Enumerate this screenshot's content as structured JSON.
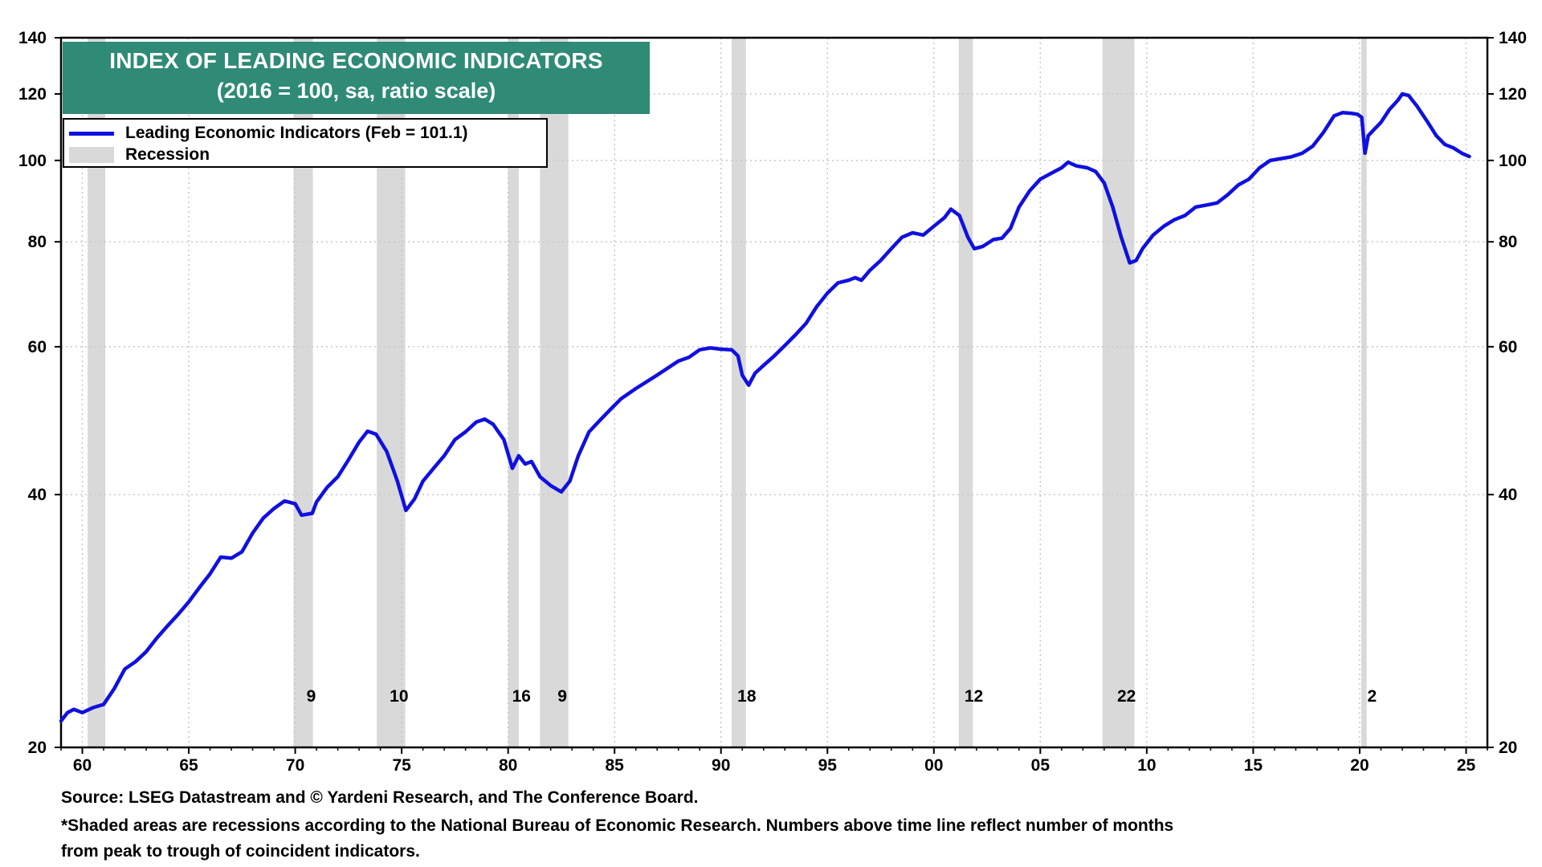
{
  "chart_data": {
    "type": "line",
    "title": "INDEX OF LEADING ECONOMIC INDICATORS",
    "subtitle": "(2016 = 100, sa, ratio scale)",
    "xlim": [
      1959,
      2026
    ],
    "ylim": [
      20,
      140
    ],
    "yscale": "log",
    "y_ticks": [
      20,
      40,
      60,
      80,
      100,
      120,
      140
    ],
    "y_tick_labels": [
      "20",
      "40",
      "60",
      "80",
      "100",
      "120",
      "140"
    ],
    "x_ticks": [
      1960,
      1965,
      1970,
      1975,
      1980,
      1985,
      1990,
      1995,
      2000,
      2005,
      2010,
      2015,
      2020,
      2025
    ],
    "x_tick_labels": [
      "60",
      "65",
      "70",
      "75",
      "80",
      "85",
      "90",
      "95",
      "00",
      "05",
      "10",
      "15",
      "20",
      "25"
    ],
    "legend": {
      "line_label": "Leading Economic Indicators (Feb = 101.1)",
      "recession_label": "Recession",
      "placement": "top-left"
    },
    "recessions": [
      {
        "start": 1960.25,
        "end": 1961.08,
        "months": ""
      },
      {
        "start": 1969.92,
        "end": 1970.83,
        "months": "9"
      },
      {
        "start": 1973.83,
        "end": 1975.17,
        "months": "10"
      },
      {
        "start": 1980.0,
        "end": 1980.5,
        "months": "16"
      },
      {
        "start": 1981.5,
        "end": 1982.83,
        "months": "9"
      },
      {
        "start": 1990.5,
        "end": 1991.17,
        "months": "18"
      },
      {
        "start": 2001.17,
        "end": 2001.83,
        "months": "12"
      },
      {
        "start": 2007.92,
        "end": 2009.42,
        "months": "22"
      },
      {
        "start": 2020.08,
        "end": 2020.33,
        "months": "2"
      }
    ],
    "series": [
      {
        "name": "Leading Economic Indicators",
        "color": "#1010e0",
        "x": [
          1959.0,
          1959.3,
          1959.6,
          1960.0,
          1960.5,
          1961.0,
          1961.5,
          1962.0,
          1962.5,
          1963.0,
          1963.5,
          1964.0,
          1964.5,
          1965.0,
          1965.5,
          1966.0,
          1966.5,
          1967.0,
          1967.5,
          1968.0,
          1968.5,
          1969.0,
          1969.5,
          1970.0,
          1970.3,
          1970.8,
          1971.0,
          1971.5,
          1972.0,
          1972.5,
          1973.0,
          1973.4,
          1973.8,
          1974.3,
          1974.8,
          1975.2,
          1975.6,
          1976.0,
          1976.5,
          1977.0,
          1977.5,
          1978.0,
          1978.5,
          1978.9,
          1979.3,
          1979.8,
          1980.2,
          1980.5,
          1980.8,
          1981.1,
          1981.5,
          1982.0,
          1982.5,
          1982.9,
          1983.3,
          1983.8,
          1984.3,
          1984.8,
          1985.3,
          1986.0,
          1987.0,
          1988.0,
          1988.5,
          1989.0,
          1989.5,
          1990.0,
          1990.5,
          1990.8,
          1991.0,
          1991.3,
          1991.6,
          1992.0,
          1992.5,
          1993.0,
          1993.5,
          1994.0,
          1994.5,
          1995.0,
          1995.5,
          1996.0,
          1996.3,
          1996.6,
          1997.0,
          1997.5,
          1998.0,
          1998.5,
          1999.0,
          1999.5,
          2000.0,
          2000.5,
          2000.8,
          2001.2,
          2001.6,
          2001.9,
          2002.3,
          2002.8,
          2003.2,
          2003.6,
          2004.0,
          2004.5,
          2005.0,
          2005.5,
          2006.0,
          2006.3,
          2006.7,
          2007.2,
          2007.6,
          2008.0,
          2008.4,
          2008.8,
          2009.2,
          2009.5,
          2009.8,
          2010.3,
          2010.8,
          2011.3,
          2011.8,
          2012.3,
          2012.8,
          2013.3,
          2013.8,
          2014.3,
          2014.8,
          2015.3,
          2015.8,
          2016.3,
          2016.8,
          2017.3,
          2017.8,
          2018.3,
          2018.8,
          2019.2,
          2019.6,
          2019.9,
          2020.1,
          2020.25,
          2020.4,
          2020.7,
          2021.0,
          2021.4,
          2021.8,
          2022.0,
          2022.3,
          2022.7,
          2023.2,
          2023.6,
          2024.0,
          2024.4,
          2024.8,
          2025.15
        ],
        "values": [
          21.5,
          22.0,
          22.2,
          22.0,
          22.3,
          22.5,
          23.5,
          24.8,
          25.3,
          26.0,
          27.0,
          27.9,
          28.8,
          29.8,
          31.0,
          32.2,
          33.7,
          33.6,
          34.2,
          36.0,
          37.5,
          38.5,
          39.3,
          39.0,
          37.8,
          38.0,
          39.2,
          40.8,
          42.0,
          44.0,
          46.2,
          47.6,
          47.2,
          45.0,
          41.5,
          38.3,
          39.5,
          41.5,
          43.0,
          44.5,
          46.5,
          47.5,
          48.8,
          49.2,
          48.5,
          46.5,
          43.0,
          44.5,
          43.5,
          43.8,
          42.0,
          41.0,
          40.3,
          41.5,
          44.5,
          47.5,
          49.0,
          50.5,
          52.0,
          53.5,
          55.5,
          57.7,
          58.3,
          59.5,
          59.8,
          59.6,
          59.5,
          58.5,
          55.5,
          54.0,
          55.8,
          57.0,
          58.5,
          60.2,
          62.0,
          64.0,
          67.0,
          69.5,
          71.5,
          72.0,
          72.5,
          72.0,
          74.0,
          76.0,
          78.5,
          81.0,
          82.0,
          81.5,
          83.5,
          85.5,
          87.5,
          86.0,
          81.0,
          78.5,
          79.0,
          80.5,
          80.8,
          83.0,
          88.0,
          92.0,
          95.0,
          96.5,
          98.0,
          99.5,
          98.5,
          98.0,
          97.0,
          94.0,
          88.0,
          81.0,
          75.5,
          76.0,
          78.5,
          81.5,
          83.5,
          85.0,
          86.0,
          88.0,
          88.5,
          89.0,
          91.0,
          93.5,
          95.0,
          98.0,
          100.0,
          100.5,
          101.0,
          102.0,
          104.0,
          108.0,
          113.0,
          114.0,
          113.8,
          113.5,
          112.5,
          102.0,
          107.0,
          109.0,
          111.0,
          115.0,
          118.0,
          120.0,
          119.5,
          116.0,
          111.0,
          107.0,
          104.5,
          103.5,
          102.0,
          101.1
        ]
      }
    ]
  },
  "footer": {
    "source": "Source: LSEG Datastream and © Yardeni Research, and The Conference Board.",
    "note_line1": "*Shaded areas are recessions according to the National Bureau of Economic Research. Numbers above time line reflect number of months",
    "note_line2": "from peak to trough of coincident indicators."
  }
}
